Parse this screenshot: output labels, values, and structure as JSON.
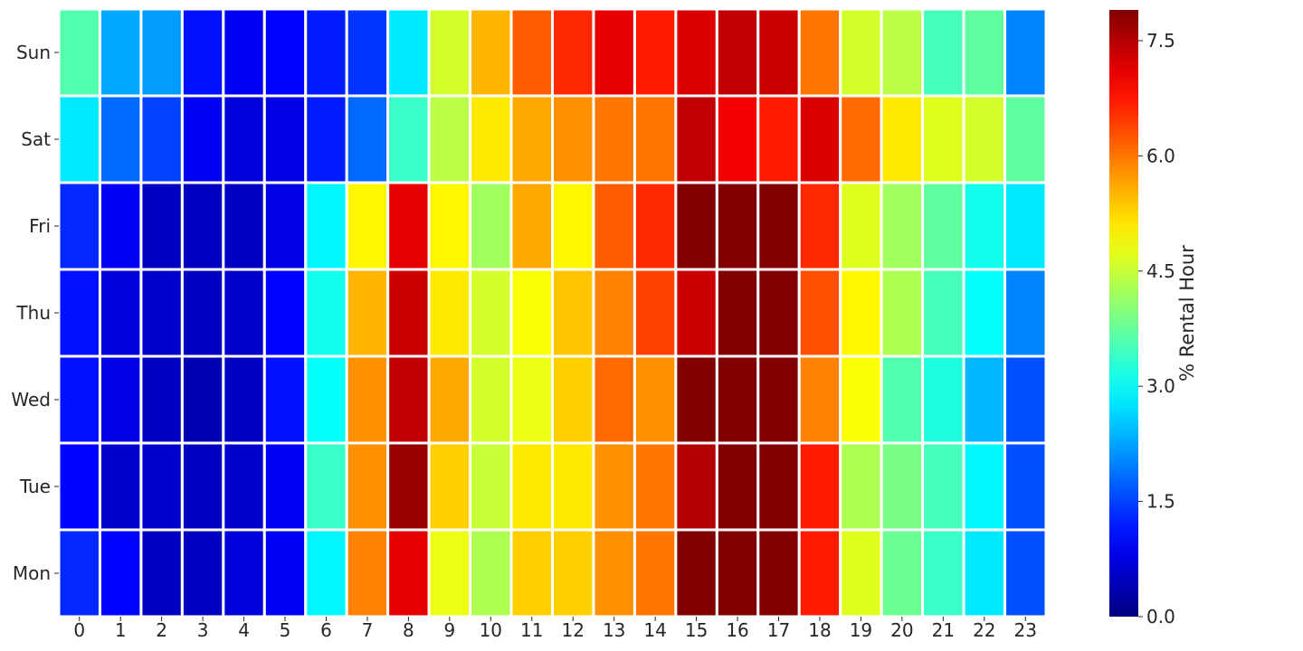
{
  "chart_data": {
    "type": "heatmap",
    "title": "",
    "xlabel": "",
    "ylabel": "",
    "colormap": "jet",
    "x": [
      "0",
      "1",
      "2",
      "3",
      "4",
      "5",
      "6",
      "7",
      "8",
      "9",
      "10",
      "11",
      "12",
      "13",
      "14",
      "15",
      "16",
      "17",
      "18",
      "19",
      "20",
      "21",
      "22",
      "23"
    ],
    "y": [
      "Sun",
      "Sat",
      "Fri",
      "Thu",
      "Wed",
      "Tue",
      "Mon"
    ],
    "values": [
      [
        3.6,
        2.3,
        2.2,
        1.1,
        0.9,
        1.0,
        1.2,
        1.4,
        2.8,
        4.6,
        5.5,
        6.2,
        6.6,
        7.1,
        6.7,
        7.2,
        7.4,
        7.3,
        6.0,
        4.6,
        4.4,
        3.5,
        3.7,
        2.0
      ],
      [
        2.8,
        1.8,
        1.5,
        0.9,
        0.7,
        0.8,
        1.2,
        1.8,
        3.4,
        4.4,
        5.1,
        5.6,
        5.8,
        6.0,
        6.0,
        7.4,
        7.0,
        6.7,
        7.2,
        6.1,
        5.1,
        4.7,
        4.6,
        3.7
      ],
      [
        1.3,
        0.9,
        0.5,
        0.5,
        0.5,
        0.8,
        2.9,
        5.0,
        7.1,
        5.0,
        4.2,
        5.6,
        5.0,
        6.2,
        6.6,
        8.0,
        9.5,
        8.5,
        6.6,
        4.7,
        4.2,
        3.7,
        3.1,
        2.8
      ],
      [
        1.1,
        0.7,
        0.6,
        0.5,
        0.6,
        1.0,
        3.1,
        5.5,
        7.3,
        5.1,
        4.6,
        4.9,
        5.4,
        5.9,
        6.4,
        7.3,
        9.6,
        8.2,
        6.3,
        5.0,
        4.3,
        3.5,
        3.0,
        2.0
      ],
      [
        1.1,
        0.8,
        0.5,
        0.4,
        0.5,
        1.1,
        3.0,
        5.8,
        7.4,
        5.6,
        4.6,
        4.8,
        5.3,
        6.1,
        5.8,
        7.9,
        9.7,
        9.6,
        5.9,
        4.9,
        3.6,
        3.2,
        2.4,
        1.6
      ],
      [
        1.0,
        0.6,
        0.6,
        0.5,
        0.6,
        0.9,
        3.4,
        5.8,
        7.7,
        5.3,
        4.5,
        5.1,
        5.1,
        5.8,
        6.0,
        7.5,
        9.5,
        9.3,
        6.7,
        4.3,
        3.9,
        3.5,
        2.9,
        1.6
      ],
      [
        1.3,
        1.0,
        0.5,
        0.5,
        0.7,
        0.9,
        2.9,
        5.9,
        7.1,
        4.8,
        4.3,
        5.3,
        5.3,
        5.8,
        6.0,
        8.1,
        9.5,
        9.3,
        6.7,
        4.7,
        3.8,
        3.4,
        2.8,
        1.6
      ]
    ],
    "colorbar": {
      "label": "% Rental Hour",
      "min": 0.0,
      "max": 7.9,
      "ticks": [
        "0.0",
        "1.5",
        "3.0",
        "4.5",
        "6.0",
        "7.5"
      ]
    }
  }
}
